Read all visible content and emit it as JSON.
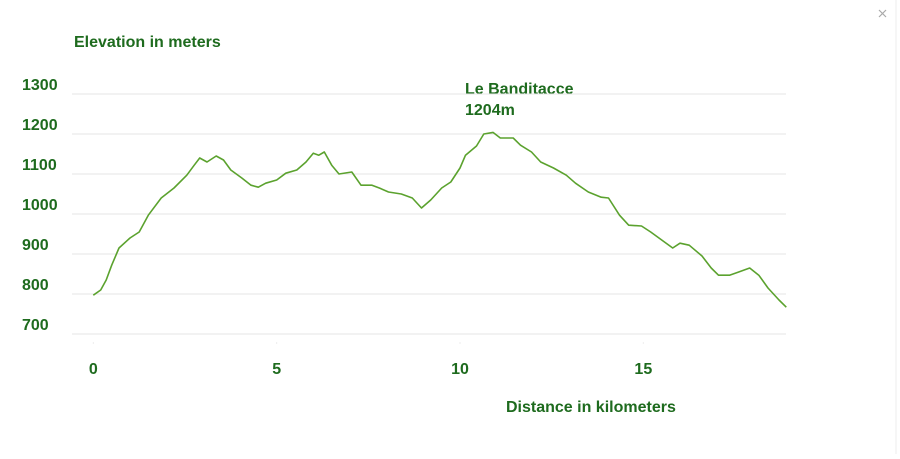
{
  "chart_data": {
    "type": "line",
    "y_axis_label": "Elevation in meters",
    "x_axis_label": "Distance in kilometers",
    "annotation": [
      "Le Banditacce",
      "1204m"
    ],
    "x": [
      0,
      0.2,
      0.35,
      0.5,
      0.7,
      1.0,
      1.25,
      1.5,
      1.85,
      2.2,
      2.55,
      2.75,
      2.9,
      3.1,
      3.35,
      3.55,
      3.75,
      4.05,
      4.3,
      4.5,
      4.7,
      5.0,
      5.25,
      5.55,
      5.8,
      6.0,
      6.15,
      6.3,
      6.5,
      6.7,
      7.05,
      7.3,
      7.6,
      7.8,
      8.05,
      8.4,
      8.7,
      8.95,
      9.2,
      9.5,
      9.75,
      10.0,
      10.15,
      10.45,
      10.65,
      10.9,
      11.1,
      11.45,
      11.65,
      11.95,
      12.2,
      12.55,
      12.9,
      13.15,
      13.5,
      13.85,
      14.05,
      14.35,
      14.6,
      14.95,
      15.2,
      15.5,
      15.8,
      16.0,
      16.25,
      16.6,
      16.85,
      17.05,
      17.35,
      17.6,
      17.9,
      18.15,
      18.4,
      18.7,
      18.9
    ],
    "series": [
      {
        "name": "Elevation",
        "color": "#5ba22e",
        "values": [
          797,
          810,
          835,
          872,
          915,
          940,
          955,
          997,
          1040,
          1065,
          1097,
          1122,
          1140,
          1130,
          1145,
          1135,
          1110,
          1090,
          1072,
          1067,
          1077,
          1085,
          1102,
          1110,
          1130,
          1152,
          1147,
          1155,
          1122,
          1100,
          1105,
          1072,
          1072,
          1065,
          1055,
          1050,
          1040,
          1015,
          1035,
          1065,
          1080,
          1115,
          1147,
          1170,
          1200,
          1204,
          1190,
          1190,
          1172,
          1155,
          1130,
          1115,
          1097,
          1077,
          1055,
          1042,
          1040,
          997,
          972,
          970,
          955,
          935,
          915,
          927,
          922,
          895,
          865,
          847,
          847,
          855,
          865,
          847,
          815,
          785,
          767
        ]
      }
    ],
    "xlim": [
      -0.5,
      19
    ],
    "xticks": [
      0,
      5,
      10,
      15
    ],
    "ylim": [
      700,
      1300
    ],
    "yticks": [
      700,
      800,
      900,
      1000,
      1100,
      1200,
      1300
    ],
    "grid": true
  }
}
